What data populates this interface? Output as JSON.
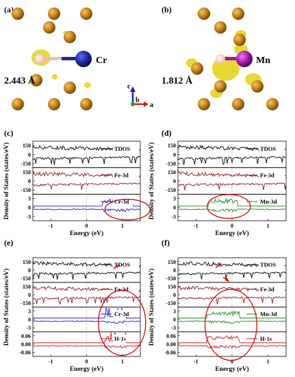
{
  "panels": {
    "a": {
      "label": "(a)",
      "element": "Cr",
      "distance": "2.443 Å",
      "element_color": "#1b2a9a"
    },
    "b": {
      "label": "(b)",
      "element": "Mn",
      "distance": "1.812 Å",
      "element_color": "#a01aa8"
    },
    "c": {
      "label": "(c)"
    },
    "d": {
      "label": "(d)"
    },
    "e": {
      "label": "(e)"
    },
    "f": {
      "label": "(f)"
    }
  },
  "axes_triad": {
    "c": "c",
    "b": "b",
    "a": "a"
  },
  "common": {
    "ylabel": "Density of States (states/eV)",
    "xlabel": "Energy (eV)"
  },
  "chart_data": [
    {
      "panel": "c",
      "type": "line",
      "xlim": [
        -1.5,
        1.5
      ],
      "xticks": [
        "-1",
        "0",
        "1"
      ],
      "series": [
        {
          "name": "TDOS",
          "color": "#000000",
          "yticks": [
            "150",
            "0",
            "-150"
          ]
        },
        {
          "name": "Fe-3d",
          "color": "#8b1a1a",
          "yticks": [
            "150",
            "0",
            "-150"
          ]
        },
        {
          "name": "Cr-3d",
          "color": "#1a1acc",
          "yticks": [
            "3",
            "0",
            "-3"
          ]
        }
      ],
      "highlight": "circle around Cr-3d states at 0.5 to 1.3 eV"
    },
    {
      "panel": "d",
      "type": "line",
      "xlim": [
        -1.5,
        1.5
      ],
      "xticks": [
        "-1",
        "0",
        "1"
      ],
      "series": [
        {
          "name": "TDOS",
          "color": "#000000",
          "yticks": [
            "150",
            "0",
            "-150"
          ]
        },
        {
          "name": "Fe-3d",
          "color": "#8b1a1a",
          "yticks": [
            "150",
            "0",
            "-150"
          ]
        },
        {
          "name": "Mn-3d",
          "color": "#1a8a1a",
          "yticks": [
            "3",
            "0",
            "-3"
          ]
        }
      ],
      "highlight": "circle around Mn-3d states at -0.6 to 0.1 eV"
    },
    {
      "panel": "e",
      "type": "line",
      "xlim": [
        -1.5,
        1.5
      ],
      "xticks": [
        "-1",
        "0",
        "1"
      ],
      "series": [
        {
          "name": "TDOS",
          "color": "#000000",
          "yticks": [
            "150",
            "0",
            "-150"
          ]
        },
        {
          "name": "Fe-3d",
          "color": "#8b1a1a",
          "yticks": [
            "150",
            "0",
            "-150"
          ]
        },
        {
          "name": "Cr-3d",
          "color": "#1a1acc",
          "yticks": [
            "3",
            "0",
            "-3"
          ]
        },
        {
          "name": "H-1s",
          "color": "#d11a1a",
          "yticks": [
            "0.06",
            "0.00",
            "-0.06"
          ]
        }
      ],
      "highlight": "circle around 0.4 to 1.3 eV; arrow at TDOS peak near 0.8 eV"
    },
    {
      "panel": "f",
      "type": "line",
      "xlim": [
        -1.5,
        1.5
      ],
      "xticks": [
        "-1",
        "0",
        "1"
      ],
      "series": [
        {
          "name": "TDOS",
          "color": "#000000",
          "yticks": [
            "150",
            "0",
            "-150"
          ]
        },
        {
          "name": "Fe-3d",
          "color": "#8b1a1a",
          "yticks": [
            "150",
            "0",
            "-150"
          ]
        },
        {
          "name": "Mn-3d",
          "color": "#1a8a1a",
          "yticks": [
            "3",
            "0",
            "-3"
          ]
        },
        {
          "name": "H-1s",
          "color": "#d11a1a",
          "yticks": [
            "0.06",
            "0.00",
            "-0.06"
          ]
        }
      ],
      "highlight": "circle around -0.6 to 0.2 eV; arrows near -0.3 eV"
    }
  ]
}
